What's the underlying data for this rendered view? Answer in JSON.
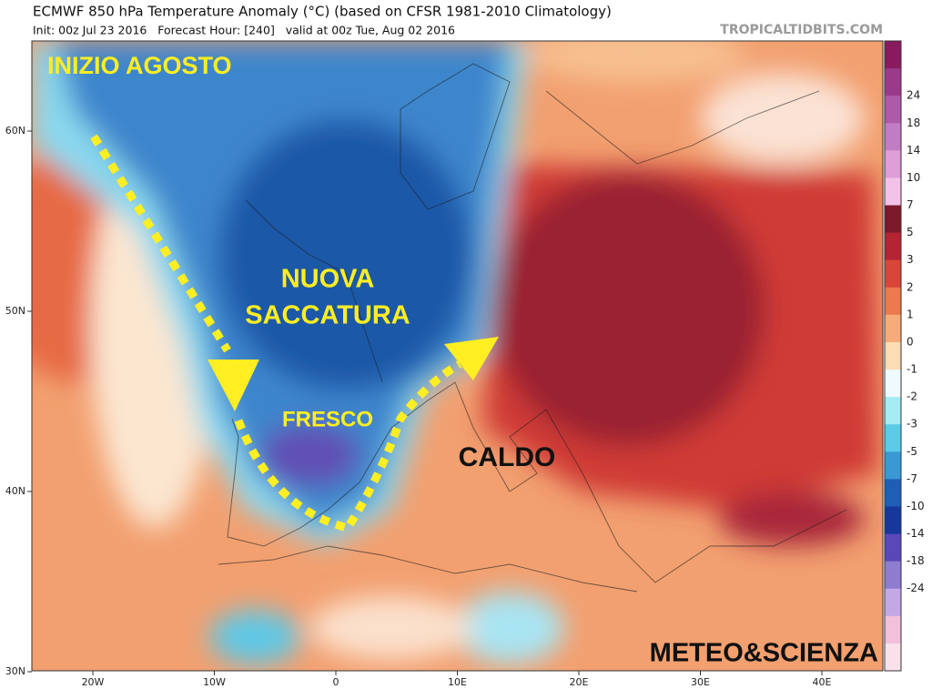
{
  "header": {
    "title": "ECMWF 850 hPa Temperature Anomaly (°C) (based on CFSR 1981-2010 Climatology)",
    "subtitle": "Init: 00z Jul 23 2016   Forecast Hour: [240]   valid at 00z Tue, Aug 02 2016",
    "source": "TROPICALTIDBITS.COM"
  },
  "map": {
    "lat_labels": [
      "60N",
      "50N",
      "40N",
      "30N"
    ],
    "lon_labels": [
      "20W",
      "10W",
      "0",
      "10E",
      "20E",
      "30E",
      "40E"
    ],
    "annotations": {
      "start": "INIZIO AGOSTO",
      "trough_1": "NUOVA",
      "trough_2": "SACCATURA",
      "cool": "FRESCO",
      "hot": "CALDO",
      "signature": "METEO&SCIENZA"
    }
  },
  "colorbar": {
    "colors": [
      "#8a1a5e",
      "#9c3a8a",
      "#ad5aa8",
      "#c17cc4",
      "#de9ed8",
      "#f2c2e8",
      "#7c1a2c",
      "#b42432",
      "#d8463a",
      "#ec7a4e",
      "#f6ac7a",
      "#fcdcb4",
      "#eefaff",
      "#a4ecf2",
      "#5ccbe8",
      "#3a98d4",
      "#1e5eb4",
      "#16389a",
      "#5a48b8",
      "#8e7cd0",
      "#c4a8e6",
      "#f2c0da",
      "#fae0ea"
    ],
    "labels": [
      "24",
      "18",
      "14",
      "10",
      "7",
      "5",
      "3",
      "2",
      "1",
      "0",
      "-1",
      "-2",
      "-3",
      "-5",
      "-7",
      "-10",
      "-14",
      "-18",
      "-24"
    ]
  }
}
